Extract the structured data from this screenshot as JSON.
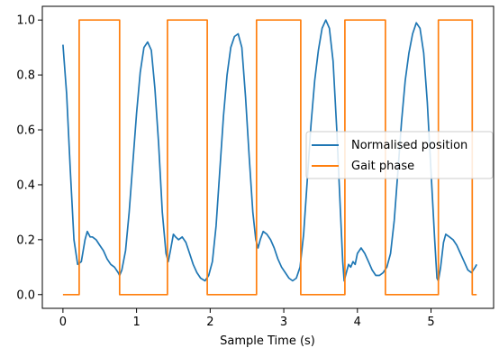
{
  "chart_data": {
    "type": "line",
    "title": "",
    "xlabel": "Sample Time (s)",
    "ylabel": "",
    "xlim": [
      -0.28,
      5.85
    ],
    "ylim": [
      -0.05,
      1.05
    ],
    "x_ticks": [
      0,
      1,
      2,
      3,
      4,
      5
    ],
    "x_tick_labels": [
      "0",
      "1",
      "2",
      "3",
      "4",
      "5"
    ],
    "y_ticks": [
      0.0,
      0.2,
      0.4,
      0.6,
      0.8,
      1.0
    ],
    "y_tick_labels": [
      "0.0",
      "0.2",
      "0.4",
      "0.6",
      "0.8",
      "1.0"
    ],
    "grid": false,
    "legend_position": "center-right",
    "series": [
      {
        "name": "Normalised position",
        "color": "#1f77b4",
        "points": [
          [
            0.0,
            0.91
          ],
          [
            0.05,
            0.73
          ],
          [
            0.1,
            0.45
          ],
          [
            0.15,
            0.2
          ],
          [
            0.2,
            0.11
          ],
          [
            0.25,
            0.12
          ],
          [
            0.3,
            0.2
          ],
          [
            0.33,
            0.23
          ],
          [
            0.37,
            0.21
          ],
          [
            0.4,
            0.21
          ],
          [
            0.45,
            0.2
          ],
          [
            0.5,
            0.18
          ],
          [
            0.55,
            0.16
          ],
          [
            0.6,
            0.13
          ],
          [
            0.65,
            0.11
          ],
          [
            0.7,
            0.1
          ],
          [
            0.75,
            0.08
          ],
          [
            0.77,
            0.07
          ],
          [
            0.8,
            0.09
          ],
          [
            0.85,
            0.16
          ],
          [
            0.9,
            0.3
          ],
          [
            0.95,
            0.48
          ],
          [
            1.0,
            0.66
          ],
          [
            1.05,
            0.81
          ],
          [
            1.1,
            0.9
          ],
          [
            1.15,
            0.92
          ],
          [
            1.2,
            0.89
          ],
          [
            1.25,
            0.75
          ],
          [
            1.3,
            0.55
          ],
          [
            1.35,
            0.3
          ],
          [
            1.4,
            0.15
          ],
          [
            1.43,
            0.12
          ],
          [
            1.46,
            0.16
          ],
          [
            1.5,
            0.22
          ],
          [
            1.53,
            0.21
          ],
          [
            1.57,
            0.2
          ],
          [
            1.62,
            0.21
          ],
          [
            1.67,
            0.19
          ],
          [
            1.72,
            0.15
          ],
          [
            1.77,
            0.11
          ],
          [
            1.82,
            0.08
          ],
          [
            1.87,
            0.06
          ],
          [
            1.93,
            0.05
          ],
          [
            1.98,
            0.07
          ],
          [
            2.03,
            0.12
          ],
          [
            2.08,
            0.25
          ],
          [
            2.13,
            0.45
          ],
          [
            2.18,
            0.65
          ],
          [
            2.23,
            0.8
          ],
          [
            2.28,
            0.9
          ],
          [
            2.33,
            0.94
          ],
          [
            2.38,
            0.95
          ],
          [
            2.43,
            0.9
          ],
          [
            2.48,
            0.72
          ],
          [
            2.53,
            0.5
          ],
          [
            2.58,
            0.3
          ],
          [
            2.62,
            0.2
          ],
          [
            2.65,
            0.17
          ],
          [
            2.68,
            0.2
          ],
          [
            2.72,
            0.23
          ],
          [
            2.77,
            0.22
          ],
          [
            2.82,
            0.2
          ],
          [
            2.87,
            0.17
          ],
          [
            2.92,
            0.13
          ],
          [
            2.97,
            0.1
          ],
          [
            3.02,
            0.08
          ],
          [
            3.07,
            0.06
          ],
          [
            3.12,
            0.05
          ],
          [
            3.17,
            0.06
          ],
          [
            3.22,
            0.1
          ],
          [
            3.27,
            0.22
          ],
          [
            3.32,
            0.42
          ],
          [
            3.37,
            0.62
          ],
          [
            3.42,
            0.78
          ],
          [
            3.47,
            0.89
          ],
          [
            3.52,
            0.97
          ],
          [
            3.57,
            1.0
          ],
          [
            3.62,
            0.97
          ],
          [
            3.67,
            0.85
          ],
          [
            3.72,
            0.6
          ],
          [
            3.77,
            0.3
          ],
          [
            3.8,
            0.12
          ],
          [
            3.82,
            0.05
          ],
          [
            3.85,
            0.08
          ],
          [
            3.88,
            0.11
          ],
          [
            3.91,
            0.1
          ],
          [
            3.94,
            0.12
          ],
          [
            3.97,
            0.11
          ],
          [
            4.0,
            0.15
          ],
          [
            4.05,
            0.17
          ],
          [
            4.1,
            0.15
          ],
          [
            4.15,
            0.12
          ],
          [
            4.2,
            0.09
          ],
          [
            4.25,
            0.07
          ],
          [
            4.3,
            0.07
          ],
          [
            4.35,
            0.08
          ],
          [
            4.4,
            0.1
          ],
          [
            4.45,
            0.15
          ],
          [
            4.5,
            0.27
          ],
          [
            4.55,
            0.45
          ],
          [
            4.6,
            0.63
          ],
          [
            4.65,
            0.78
          ],
          [
            4.7,
            0.88
          ],
          [
            4.75,
            0.95
          ],
          [
            4.8,
            0.99
          ],
          [
            4.85,
            0.97
          ],
          [
            4.9,
            0.88
          ],
          [
            4.95,
            0.7
          ],
          [
            5.0,
            0.45
          ],
          [
            5.05,
            0.2
          ],
          [
            5.08,
            0.06
          ],
          [
            5.1,
            0.05
          ],
          [
            5.13,
            0.1
          ],
          [
            5.17,
            0.19
          ],
          [
            5.2,
            0.22
          ],
          [
            5.25,
            0.21
          ],
          [
            5.3,
            0.2
          ],
          [
            5.35,
            0.18
          ],
          [
            5.4,
            0.15
          ],
          [
            5.45,
            0.12
          ],
          [
            5.5,
            0.09
          ],
          [
            5.55,
            0.08
          ],
          [
            5.6,
            0.1
          ],
          [
            5.62,
            0.11
          ]
        ]
      },
      {
        "name": "Gait phase",
        "color": "#ff7f0e",
        "points": [
          [
            0.0,
            0.0
          ],
          [
            0.22,
            0.0
          ],
          [
            0.22,
            1.0
          ],
          [
            0.77,
            1.0
          ],
          [
            0.77,
            0.0
          ],
          [
            1.42,
            0.0
          ],
          [
            1.42,
            1.0
          ],
          [
            1.96,
            1.0
          ],
          [
            1.96,
            0.0
          ],
          [
            2.63,
            0.0
          ],
          [
            2.63,
            1.0
          ],
          [
            3.23,
            1.0
          ],
          [
            3.23,
            0.0
          ],
          [
            3.83,
            0.0
          ],
          [
            3.83,
            1.0
          ],
          [
            4.38,
            1.0
          ],
          [
            4.38,
            0.0
          ],
          [
            5.1,
            0.0
          ],
          [
            5.1,
            1.0
          ],
          [
            5.56,
            1.0
          ],
          [
            5.56,
            0.0
          ],
          [
            5.62,
            0.0
          ]
        ]
      }
    ]
  }
}
